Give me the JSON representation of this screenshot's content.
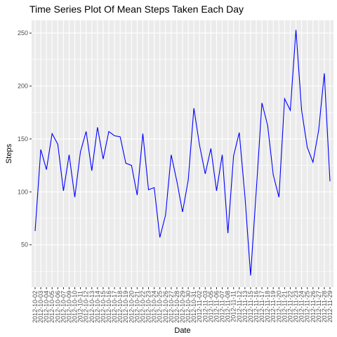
{
  "chart_data": {
    "type": "line",
    "title": "Time Series Plot Of Mean Steps Taken Each Day",
    "xlabel": "Date",
    "ylabel": "Steps",
    "ylim": [
      10,
      262
    ],
    "yticks": [
      50,
      100,
      150,
      200,
      250
    ],
    "grid": true,
    "colors": {
      "line": "#0000ff",
      "panel": "#ebebeb",
      "grid": "#ffffff"
    },
    "x": [
      "2012-10-02",
      "2012-10-03",
      "2012-10-04",
      "2012-10-05",
      "2012-10-06",
      "2012-10-07",
      "2012-10-09",
      "2012-10-10",
      "2012-10-11",
      "2012-10-12",
      "2012-10-13",
      "2012-10-14",
      "2012-10-15",
      "2012-10-16",
      "2012-10-17",
      "2012-10-18",
      "2012-10-19",
      "2012-10-20",
      "2012-10-21",
      "2012-10-22",
      "2012-10-23",
      "2012-10-24",
      "2012-10-25",
      "2012-10-26",
      "2012-10-27",
      "2012-10-28",
      "2012-10-29",
      "2012-10-30",
      "2012-10-31",
      "2012-11-02",
      "2012-11-03",
      "2012-11-05",
      "2012-11-06",
      "2012-11-07",
      "2012-11-08",
      "2012-11-11",
      "2012-11-12",
      "2012-11-13",
      "2012-11-15",
      "2012-11-16",
      "2012-11-17",
      "2012-11-18",
      "2012-11-19",
      "2012-11-20",
      "2012-11-21",
      "2012-11-22",
      "2012-11-23",
      "2012-11-24",
      "2012-11-25",
      "2012-11-26",
      "2012-11-27",
      "2012-11-28",
      "2012-11-29"
    ],
    "series": [
      {
        "values": [
          63,
          140,
          121,
          155,
          145,
          101,
          135,
          95,
          138,
          157,
          120,
          161,
          131,
          157,
          153,
          152,
          127,
          125,
          97,
          155,
          102,
          104,
          57,
          78,
          135,
          110,
          81,
          111,
          179,
          144,
          117,
          141,
          101,
          135,
          61,
          134,
          156,
          96,
          21,
          101,
          184,
          163,
          116,
          95,
          188,
          177,
          253,
          177,
          142,
          128,
          158,
          212,
          110
        ]
      }
    ]
  }
}
